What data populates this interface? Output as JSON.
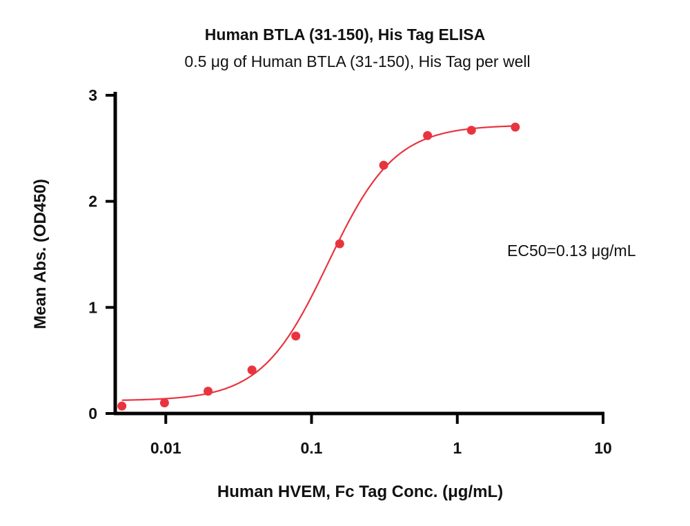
{
  "chart_data": {
    "type": "scatter",
    "title": "Human BTLA (31-150), His Tag ELISA",
    "subtitle": "0.5 μg of Human BTLA (31-150), His Tag per well",
    "xlabel": "Human HVEM, Fc Tag Conc. (μg/mL)",
    "ylabel": "Mean Abs. (OD450)",
    "x_scale": "log",
    "xlim": [
      0.0045,
      10
    ],
    "ylim": [
      0,
      3
    ],
    "x_ticks": [
      0.01,
      0.1,
      1,
      10
    ],
    "x_tick_labels": [
      "0.01",
      "0.1",
      "1",
      "10"
    ],
    "y_ticks": [
      0,
      1,
      2,
      3
    ],
    "y_tick_labels": [
      "0",
      "1",
      "2",
      "3"
    ],
    "grid": false,
    "annotation": "EC50=0.13 μg/mL",
    "series": [
      {
        "color": "#e8343f",
        "points": [
          {
            "x": 0.005,
            "y": 0.07
          },
          {
            "x": 0.0098,
            "y": 0.1
          },
          {
            "x": 0.0195,
            "y": 0.21
          },
          {
            "x": 0.039,
            "y": 0.41
          },
          {
            "x": 0.078,
            "y": 0.73
          },
          {
            "x": 0.156,
            "y": 1.6
          },
          {
            "x": 0.3125,
            "y": 2.34
          },
          {
            "x": 0.625,
            "y": 2.62
          },
          {
            "x": 1.25,
            "y": 2.67
          },
          {
            "x": 2.5,
            "y": 2.7
          }
        ],
        "fit": {
          "type": "4PL",
          "bottom": 0.12,
          "top": 2.72,
          "ec50": 0.13,
          "hill": 1.9
        }
      }
    ]
  }
}
